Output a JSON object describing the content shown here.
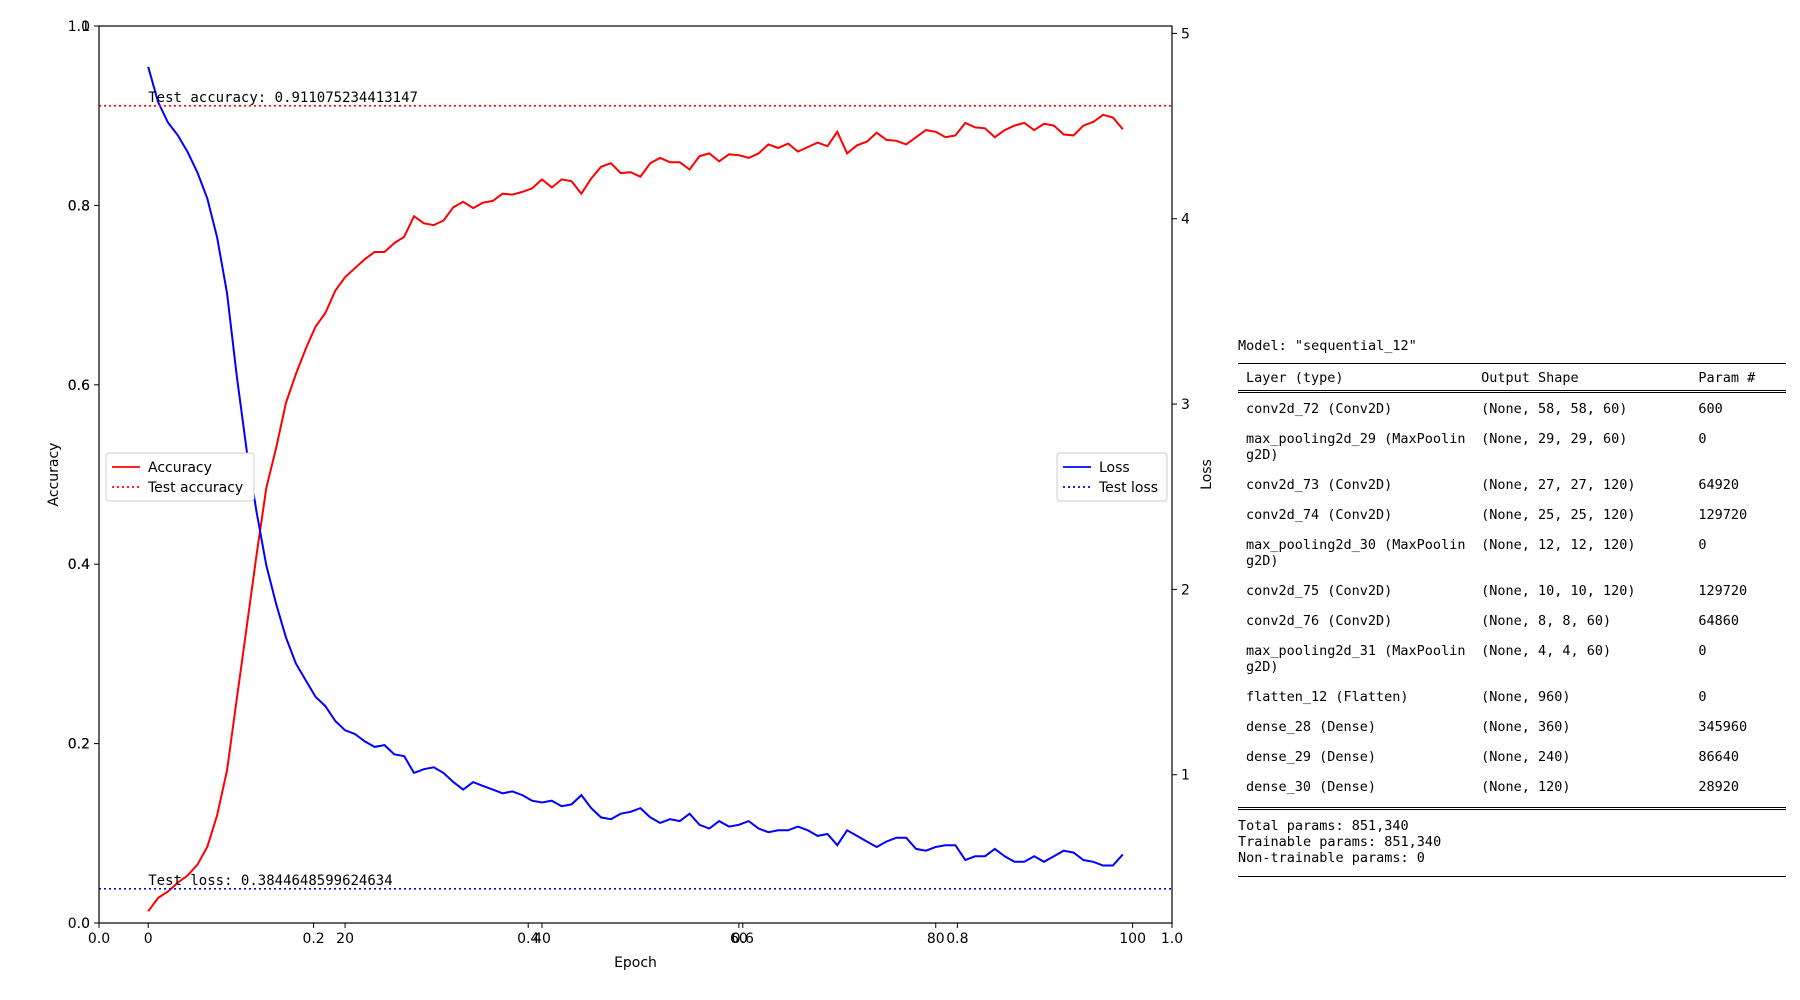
{
  "chart_data": {
    "type": "line",
    "xlabel": "Epoch",
    "ylabel_left": "Accuracy",
    "ylabel_right": "Loss",
    "xlim": [
      -5,
      104
    ],
    "ylim_left": [
      0,
      1
    ],
    "ylim_right": [
      0.2,
      5.04
    ],
    "xticks": [
      0,
      20,
      40,
      60,
      80,
      100
    ],
    "yticks_left": [
      0.0,
      0.2,
      0.4,
      0.6,
      0.8,
      1.0
    ],
    "yticks_right": [
      1,
      2,
      3,
      4,
      5
    ],
    "overlay_axis_ticks": {
      "x": [
        "0.0",
        "0.2",
        "0.4",
        "0.6",
        "0.8",
        "1.0"
      ],
      "y": [
        "0.0",
        "0.2",
        "0.4",
        "0.6",
        "0.8",
        "1.0"
      ]
    },
    "legend_left": {
      "placement": "center-left",
      "entries": [
        "Accuracy",
        "Test accuracy"
      ]
    },
    "legend_right": {
      "placement": "center-right",
      "entries": [
        "Loss",
        "Test loss"
      ]
    },
    "test_accuracy": 0.911075234413147,
    "test_loss": 0.3844648599624634,
    "test_accuracy_label": "Test accuracy: 0.911075234413147",
    "test_loss_label": "Test loss: 0.3844648599624634",
    "series": [
      {
        "name": "Accuracy",
        "axis": "left",
        "color": "#ff0000",
        "x": [
          0,
          1,
          2,
          3,
          4,
          5,
          6,
          7,
          8,
          9,
          10,
          11,
          12,
          13,
          14,
          15,
          16,
          17,
          18,
          19,
          20,
          21,
          22,
          23,
          24,
          25,
          26,
          27,
          28,
          29,
          30,
          31,
          32,
          33,
          34,
          35,
          36,
          37,
          38,
          39,
          40,
          41,
          42,
          43,
          44,
          45,
          46,
          47,
          48,
          49,
          50,
          51,
          52,
          53,
          54,
          55,
          56,
          57,
          58,
          59,
          60,
          61,
          62,
          63,
          64,
          65,
          66,
          67,
          68,
          69,
          70,
          71,
          72,
          73,
          74,
          75,
          76,
          77,
          78,
          79,
          80,
          81,
          82,
          83,
          84,
          85,
          86,
          87,
          88,
          89,
          90,
          91,
          92,
          93,
          94,
          95,
          96,
          97,
          98,
          99
        ],
        "values": [
          0.013,
          0.028,
          0.035,
          0.045,
          0.053,
          0.065,
          0.085,
          0.12,
          0.17,
          0.25,
          0.33,
          0.41,
          0.485,
          0.53,
          0.58,
          0.612,
          0.64,
          0.665,
          0.68,
          0.705,
          0.72,
          0.73,
          0.74,
          0.748,
          0.748,
          0.758,
          0.765,
          0.788,
          0.78,
          0.778,
          0.783,
          0.798,
          0.804,
          0.797,
          0.803,
          0.805,
          0.813,
          0.812,
          0.815,
          0.819,
          0.829,
          0.82,
          0.829,
          0.827,
          0.813,
          0.83,
          0.843,
          0.847,
          0.836,
          0.837,
          0.832,
          0.847,
          0.853,
          0.848,
          0.848,
          0.84,
          0.855,
          0.858,
          0.849,
          0.857,
          0.856,
          0.853,
          0.858,
          0.868,
          0.864,
          0.869,
          0.86,
          0.865,
          0.87,
          0.866,
          0.882,
          0.858,
          0.867,
          0.871,
          0.881,
          0.873,
          0.872,
          0.868,
          0.876,
          0.884,
          0.882,
          0.876,
          0.878,
          0.892,
          0.887,
          0.886,
          0.876,
          0.884,
          0.889,
          0.892,
          0.884,
          0.891,
          0.889,
          0.879,
          0.878,
          0.889,
          0.893,
          0.901,
          0.898,
          0.885
        ]
      },
      {
        "name": "Loss",
        "axis": "right",
        "color": "#0000ff",
        "x": [
          0,
          1,
          2,
          3,
          4,
          5,
          6,
          7,
          8,
          9,
          10,
          11,
          12,
          13,
          14,
          15,
          16,
          17,
          18,
          19,
          20,
          21,
          22,
          23,
          24,
          25,
          26,
          27,
          28,
          29,
          30,
          31,
          32,
          33,
          34,
          35,
          36,
          37,
          38,
          39,
          40,
          41,
          42,
          43,
          44,
          45,
          46,
          47,
          48,
          49,
          50,
          51,
          52,
          53,
          54,
          55,
          56,
          57,
          58,
          59,
          60,
          61,
          62,
          63,
          64,
          65,
          66,
          67,
          68,
          69,
          70,
          71,
          72,
          73,
          74,
          75,
          76,
          77,
          78,
          79,
          80,
          81,
          82,
          83,
          84,
          85,
          86,
          87,
          88,
          89,
          90,
          91,
          92,
          93,
          94,
          95,
          96,
          97,
          98,
          99
        ],
        "values": [
          4.82,
          4.63,
          4.52,
          4.45,
          4.36,
          4.25,
          4.11,
          3.9,
          3.6,
          3.15,
          2.75,
          2.42,
          2.13,
          1.92,
          1.74,
          1.6,
          1.51,
          1.42,
          1.37,
          1.29,
          1.24,
          1.22,
          1.18,
          1.15,
          1.16,
          1.11,
          1.1,
          1.01,
          1.03,
          1.04,
          1.01,
          0.96,
          0.92,
          0.96,
          0.94,
          0.92,
          0.9,
          0.91,
          0.89,
          0.86,
          0.85,
          0.86,
          0.83,
          0.84,
          0.89,
          0.82,
          0.77,
          0.76,
          0.79,
          0.8,
          0.82,
          0.77,
          0.74,
          0.76,
          0.75,
          0.79,
          0.73,
          0.71,
          0.75,
          0.72,
          0.73,
          0.75,
          0.71,
          0.69,
          0.7,
          0.7,
          0.72,
          0.7,
          0.67,
          0.68,
          0.62,
          0.7,
          0.67,
          0.64,
          0.61,
          0.64,
          0.66,
          0.66,
          0.6,
          0.59,
          0.61,
          0.62,
          0.62,
          0.54,
          0.56,
          0.56,
          0.6,
          0.56,
          0.53,
          0.53,
          0.56,
          0.53,
          0.56,
          0.59,
          0.58,
          0.54,
          0.53,
          0.51,
          0.51,
          0.57
        ]
      }
    ]
  },
  "model_summary": {
    "title": "Model: \"sequential_12\"",
    "headers": [
      "Layer (type)",
      "Output Shape",
      "Param #"
    ],
    "layers": [
      {
        "name": "conv2d_72 (Conv2D)",
        "shape": "(None, 58, 58, 60)",
        "params": "600"
      },
      {
        "name": "max_pooling2d_29 (MaxPoolin\ng2D)",
        "shape": "(None, 29, 29, 60)",
        "params": "0"
      },
      {
        "name": "conv2d_73 (Conv2D)",
        "shape": "(None, 27, 27, 120)",
        "params": "64920"
      },
      {
        "name": "conv2d_74 (Conv2D)",
        "shape": "(None, 25, 25, 120)",
        "params": "129720"
      },
      {
        "name": "max_pooling2d_30 (MaxPoolin\ng2D)",
        "shape": "(None, 12, 12, 120)",
        "params": "0"
      },
      {
        "name": "conv2d_75 (Conv2D)",
        "shape": "(None, 10, 10, 120)",
        "params": "129720"
      },
      {
        "name": "conv2d_76 (Conv2D)",
        "shape": "(None, 8, 8, 60)",
        "params": "64860"
      },
      {
        "name": "max_pooling2d_31 (MaxPoolin\ng2D)",
        "shape": "(None, 4, 4, 60)",
        "params": "0"
      },
      {
        "name": "flatten_12 (Flatten)",
        "shape": "(None, 960)",
        "params": "0"
      },
      {
        "name": "dense_28 (Dense)",
        "shape": "(None, 360)",
        "params": "345960"
      },
      {
        "name": "dense_29 (Dense)",
        "shape": "(None, 240)",
        "params": "86640"
      },
      {
        "name": "dense_30 (Dense)",
        "shape": "(None, 120)",
        "params": "28920"
      }
    ],
    "total_params": "Total params: 851,340",
    "trainable_params": "Trainable params: 851,340",
    "non_trainable_params": "Non-trainable params: 0"
  }
}
